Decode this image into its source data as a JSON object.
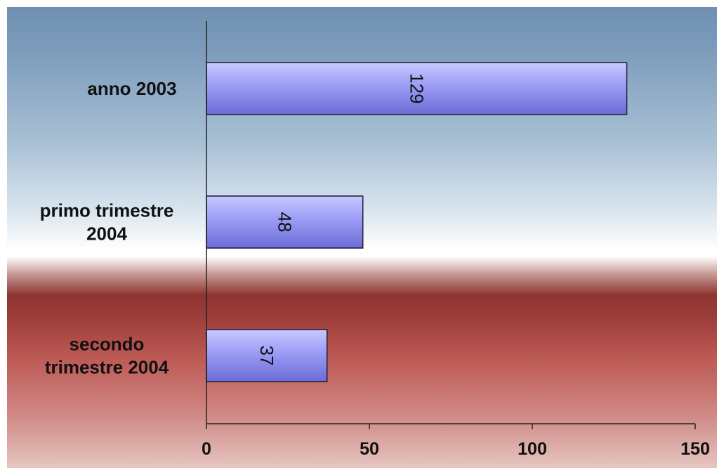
{
  "chart_data": {
    "type": "bar",
    "orientation": "horizontal",
    "categories": [
      "anno 2003",
      "primo trimestre 2004",
      "secondo trimestre 2004"
    ],
    "category_lines": [
      [
        "anno 2003"
      ],
      [
        "primo trimestre",
        "2004"
      ],
      [
        "secondo",
        "trimestre 2004"
      ]
    ],
    "values": [
      129,
      48,
      37
    ],
    "data_labels": [
      "129",
      "48",
      "37"
    ],
    "xlim": [
      0,
      150
    ],
    "xticks": [
      0,
      50,
      100,
      150
    ],
    "xtick_labels": [
      "0",
      "50",
      "100",
      "150"
    ],
    "grid": false,
    "legend": "none",
    "colors": {
      "bar_light": "#c7c9ff",
      "bar_mid": "#9b9cf5",
      "bar_dark": "#6b6bd6",
      "bar_stroke": "#1a1a33",
      "axis": "#222222"
    }
  }
}
